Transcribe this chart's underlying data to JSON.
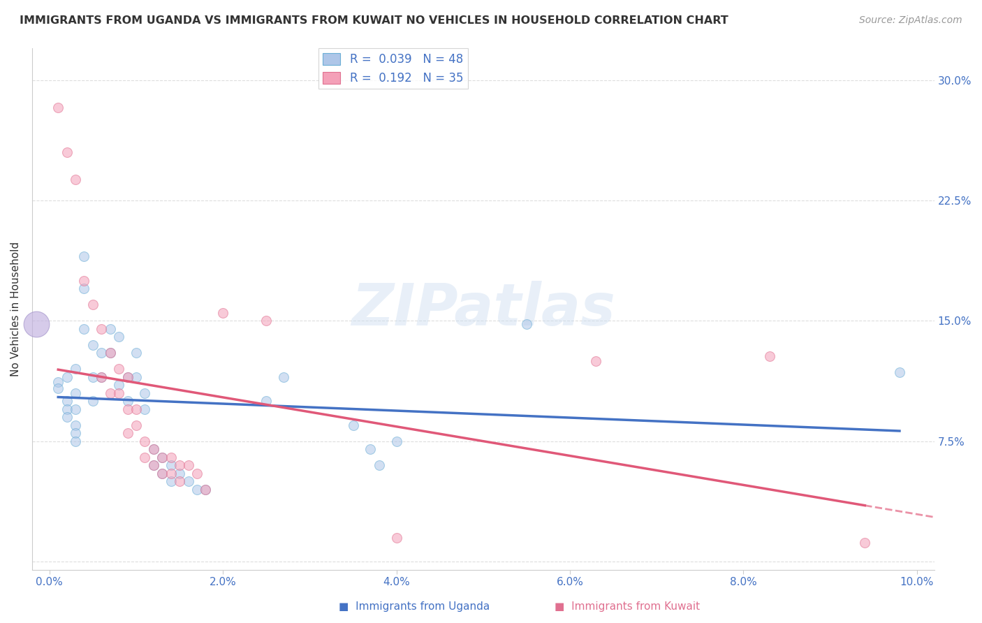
{
  "title": "IMMIGRANTS FROM UGANDA VS IMMIGRANTS FROM KUWAIT NO VEHICLES IN HOUSEHOLD CORRELATION CHART",
  "source": "Source: ZipAtlas.com",
  "ylabel": "No Vehicles in Household",
  "y_ticks": [
    0.0,
    0.075,
    0.15,
    0.225,
    0.3
  ],
  "y_tick_labels": [
    "",
    "7.5%",
    "15.0%",
    "22.5%",
    "30.0%"
  ],
  "x_ticks": [
    0.0,
    0.02,
    0.04,
    0.06,
    0.08,
    0.1
  ],
  "x_tick_labels": [
    "0.0%",
    "2.0%",
    "4.0%",
    "6.0%",
    "8.0%",
    "10.0%"
  ],
  "xlim": [
    -0.002,
    0.102
  ],
  "ylim": [
    -0.005,
    0.32
  ],
  "watermark": "ZIPatlas",
  "uganda_color": "#aec6e8",
  "kuwait_color": "#f4a0b8",
  "uganda_edge": "#6baed6",
  "kuwait_edge": "#e07090",
  "trend_uganda_color": "#4472c4",
  "trend_kuwait_color": "#e05878",
  "background_color": "#ffffff",
  "grid_color": "#dddddd",
  "tick_label_color": "#4472c4",
  "uganda_scatter": [
    [
      0.001,
      0.112
    ],
    [
      0.001,
      0.108
    ],
    [
      0.002,
      0.115
    ],
    [
      0.002,
      0.1
    ],
    [
      0.002,
      0.095
    ],
    [
      0.002,
      0.09
    ],
    [
      0.003,
      0.12
    ],
    [
      0.003,
      0.105
    ],
    [
      0.003,
      0.095
    ],
    [
      0.003,
      0.085
    ],
    [
      0.003,
      0.08
    ],
    [
      0.003,
      0.075
    ],
    [
      0.004,
      0.19
    ],
    [
      0.004,
      0.17
    ],
    [
      0.004,
      0.145
    ],
    [
      0.005,
      0.135
    ],
    [
      0.005,
      0.115
    ],
    [
      0.005,
      0.1
    ],
    [
      0.006,
      0.13
    ],
    [
      0.006,
      0.115
    ],
    [
      0.007,
      0.145
    ],
    [
      0.007,
      0.13
    ],
    [
      0.008,
      0.14
    ],
    [
      0.008,
      0.11
    ],
    [
      0.009,
      0.115
    ],
    [
      0.009,
      0.1
    ],
    [
      0.01,
      0.13
    ],
    [
      0.01,
      0.115
    ],
    [
      0.011,
      0.105
    ],
    [
      0.011,
      0.095
    ],
    [
      0.012,
      0.07
    ],
    [
      0.012,
      0.06
    ],
    [
      0.013,
      0.065
    ],
    [
      0.013,
      0.055
    ],
    [
      0.014,
      0.06
    ],
    [
      0.014,
      0.05
    ],
    [
      0.015,
      0.055
    ],
    [
      0.016,
      0.05
    ],
    [
      0.017,
      0.045
    ],
    [
      0.018,
      0.045
    ],
    [
      0.025,
      0.1
    ],
    [
      0.027,
      0.115
    ],
    [
      0.035,
      0.085
    ],
    [
      0.037,
      0.07
    ],
    [
      0.038,
      0.06
    ],
    [
      0.04,
      0.075
    ],
    [
      0.055,
      0.148
    ],
    [
      0.098,
      0.118
    ]
  ],
  "kuwait_scatter": [
    [
      0.001,
      0.283
    ],
    [
      0.002,
      0.255
    ],
    [
      0.003,
      0.238
    ],
    [
      0.004,
      0.175
    ],
    [
      0.005,
      0.16
    ],
    [
      0.006,
      0.145
    ],
    [
      0.006,
      0.115
    ],
    [
      0.007,
      0.13
    ],
    [
      0.007,
      0.105
    ],
    [
      0.008,
      0.12
    ],
    [
      0.008,
      0.105
    ],
    [
      0.009,
      0.115
    ],
    [
      0.009,
      0.095
    ],
    [
      0.009,
      0.08
    ],
    [
      0.01,
      0.095
    ],
    [
      0.01,
      0.085
    ],
    [
      0.011,
      0.075
    ],
    [
      0.011,
      0.065
    ],
    [
      0.012,
      0.07
    ],
    [
      0.012,
      0.06
    ],
    [
      0.013,
      0.065
    ],
    [
      0.013,
      0.055
    ],
    [
      0.014,
      0.065
    ],
    [
      0.014,
      0.055
    ],
    [
      0.015,
      0.06
    ],
    [
      0.015,
      0.05
    ],
    [
      0.016,
      0.06
    ],
    [
      0.017,
      0.055
    ],
    [
      0.018,
      0.045
    ],
    [
      0.02,
      0.155
    ],
    [
      0.025,
      0.15
    ],
    [
      0.04,
      0.015
    ],
    [
      0.063,
      0.125
    ],
    [
      0.083,
      0.128
    ],
    [
      0.094,
      0.012
    ]
  ],
  "marker_size": 100,
  "alpha": 0.55,
  "legend_label_uganda": "R =  0.039   N = 48",
  "legend_label_kuwait": "R =  0.192   N = 35",
  "bottom_legend_uganda": "Immigrants from Uganda",
  "bottom_legend_kuwait": "Immigrants from Kuwait"
}
